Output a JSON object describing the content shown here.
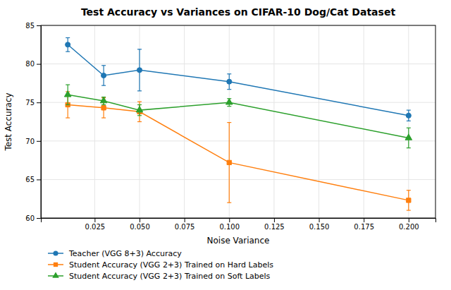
{
  "chart_data": {
    "type": "line",
    "title": "Test Accuracy vs Variances on CIFAR-10 Dog/Cat Dataset",
    "xlabel": "Noise Variance",
    "ylabel": "Test Accuracy",
    "x": [
      0.01,
      0.03,
      0.05,
      0.1,
      0.2
    ],
    "series": [
      {
        "name": "Teacher (VGG 8+3) Accuracy",
        "color": "#1f77b4",
        "marker": "circle",
        "values": [
          82.5,
          78.5,
          79.2,
          77.7,
          73.3
        ],
        "yerr": [
          0.9,
          1.3,
          2.7,
          1.0,
          0.7
        ]
      },
      {
        "name": "Student Accuracy (VGG 2+3) Trained on Hard Labels",
        "color": "#ff7f0e",
        "marker": "square",
        "values": [
          74.7,
          74.3,
          73.8,
          67.2,
          62.3
        ],
        "yerr": [
          1.7,
          1.3,
          1.3,
          5.2,
          1.3
        ]
      },
      {
        "name": "Student Accuracy (VGG 2+3) Trained on Soft Labels",
        "color": "#2ca02c",
        "marker": "triangle",
        "values": [
          76.0,
          75.2,
          74.0,
          75.0,
          70.4
        ],
        "yerr": [
          1.3,
          0.5,
          0.7,
          0.5,
          1.3
        ]
      }
    ],
    "xlim": [
      -0.005,
      0.215
    ],
    "xticks": [
      0.025,
      {
        "value": 0.05,
        "label": "0.050"
      },
      0.075,
      {
        "value": 0.1,
        "label": "0.100"
      },
      0.125,
      {
        "value": 0.15,
        "label": "0.150"
      },
      0.175,
      {
        "value": 0.2,
        "label": "0.200"
      }
    ],
    "ylim": [
      60,
      85
    ],
    "yticks": [
      60,
      65,
      70,
      75,
      80,
      85
    ],
    "grid": true,
    "legend": "bottom"
  }
}
